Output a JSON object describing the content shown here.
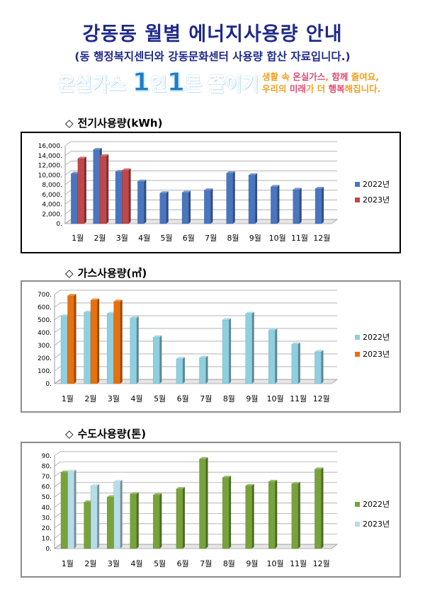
{
  "header": {
    "title": "강동동 월별 에너지사용량 안내",
    "subtitle": "(동 행정복지센터와 강동문화센터 사용량 합산 자료입니다.)"
  },
  "campaign": {
    "slogan_pre": "온실가스 ",
    "slogan_num1": "1",
    "slogan_mid": "인",
    "slogan_num2": "1",
    "slogan_post": "톤 줄이기",
    "msg_line1_a": "생활 속 ",
    "msg_line1_b": "온실가스",
    "msg_line1_c": ", ",
    "msg_line1_d": "함께",
    "msg_line1_e": " 줄여요,",
    "msg_line2_a": "우리의 ",
    "msg_line2_b": "미래",
    "msg_line2_c": "가 더 ",
    "msg_line2_d": "행복",
    "msg_line2_e": "해집니다."
  },
  "sections": {
    "electricity": "전기사용량(kWh)",
    "gas": "가스사용량(㎥)",
    "water": "수도사용량(톤)",
    "marker": "◇"
  },
  "chart_data": [
    {
      "type": "bar",
      "id": "electricity",
      "title": "전기사용량(kWh)",
      "categories": [
        "1월",
        "2월",
        "3월",
        "4월",
        "5월",
        "6월",
        "7월",
        "8월",
        "9월",
        "10월",
        "11월",
        "12월"
      ],
      "series": [
        {
          "name": "2022년",
          "color": "#4a76c0",
          "values": [
            10300,
            15200,
            10700,
            8700,
            6300,
            6400,
            6900,
            10400,
            10000,
            7600,
            7000,
            7200
          ]
        },
        {
          "name": "2023년",
          "color": "#c0474a",
          "values": [
            13400,
            13900,
            11000,
            null,
            null,
            null,
            null,
            null,
            null,
            null,
            null,
            null
          ]
        }
      ],
      "ylim": [
        0,
        16000
      ],
      "yticks": [
        "0.",
        "2,000.",
        "4,000.",
        "6,000.",
        "8,000.",
        "10,000.",
        "12,000.",
        "14,000.",
        "16,000."
      ],
      "grid": true,
      "legend": "right"
    },
    {
      "type": "bar",
      "id": "gas",
      "title": "가스사용량(㎥)",
      "categories": [
        "1월",
        "2월",
        "3월",
        "4월",
        "5월",
        "6월",
        "7월",
        "8월",
        "9월",
        "10월",
        "11월",
        "12월"
      ],
      "series": [
        {
          "name": "2022년",
          "color": "#8ecfe0",
          "values": [
            530,
            560,
            550,
            515,
            365,
            195,
            205,
            500,
            550,
            420,
            310,
            250
          ]
        },
        {
          "name": "2023년",
          "color": "#e8700d",
          "values": [
            690,
            655,
            645,
            null,
            null,
            null,
            null,
            null,
            null,
            null,
            null,
            null
          ]
        }
      ],
      "ylim": [
        0,
        700
      ],
      "yticks": [
        "0.",
        "100.",
        "200.",
        "300.",
        "400.",
        "500.",
        "600.",
        "700."
      ],
      "grid": true,
      "legend": "right"
    },
    {
      "type": "bar",
      "id": "water",
      "title": "수도사용량(톤)",
      "categories": [
        "1월",
        "2월",
        "3월",
        "4월",
        "5월",
        "6월",
        "7월",
        "8월",
        "9월",
        "10월",
        "11월",
        "12월"
      ],
      "series": [
        {
          "name": "2022년",
          "color": "#77a33a",
          "values": [
            74,
            45,
            50,
            53,
            52,
            58,
            87,
            69,
            61,
            65,
            63,
            77
          ]
        },
        {
          "name": "2023년",
          "color": "#b7dde9",
          "values": [
            75,
            61,
            65,
            null,
            null,
            null,
            null,
            null,
            null,
            null,
            null,
            null
          ]
        }
      ],
      "ylim": [
        0,
        90
      ],
      "yticks": [
        "0.",
        "10.",
        "20.",
        "30.",
        "40.",
        "50.",
        "60.",
        "70.",
        "80.",
        "90."
      ],
      "grid": true,
      "legend": "right"
    }
  ]
}
